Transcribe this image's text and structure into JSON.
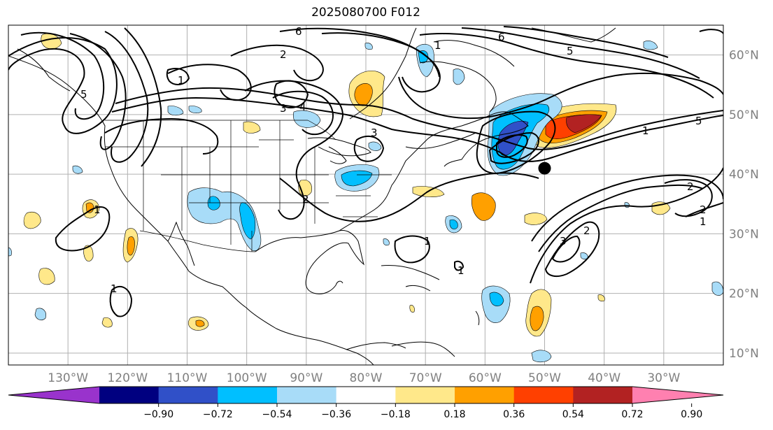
{
  "title": "2025080700 F012",
  "map": {
    "lon_range": [
      -140,
      -20
    ],
    "lat_range": [
      8,
      65
    ],
    "lon_ticks": [
      {
        "value": -130,
        "label": "130°W"
      },
      {
        "value": -120,
        "label": "120°W"
      },
      {
        "value": -110,
        "label": "110°W"
      },
      {
        "value": -100,
        "label": "100°W"
      },
      {
        "value": -90,
        "label": "90°W"
      },
      {
        "value": -80,
        "label": "80°W"
      },
      {
        "value": -70,
        "label": "70°W"
      },
      {
        "value": -60,
        "label": "60°W"
      },
      {
        "value": -50,
        "label": "50°W"
      },
      {
        "value": -40,
        "label": "40°W"
      },
      {
        "value": -30,
        "label": "30°W"
      }
    ],
    "lat_ticks": [
      {
        "value": 60,
        "label": "60°N"
      },
      {
        "value": 50,
        "label": "50°N"
      },
      {
        "value": 40,
        "label": "40°N"
      },
      {
        "value": 30,
        "label": "30°N"
      },
      {
        "value": 20,
        "label": "20°N"
      },
      {
        "value": 10,
        "label": "10°N"
      }
    ],
    "marker": {
      "lon": -50,
      "lat": 41,
      "color": "#000000"
    },
    "contour_labels": [
      "1",
      "2",
      "3",
      "4",
      "5",
      "6",
      "1",
      "2",
      "3",
      "5",
      "1",
      "2",
      "3",
      "1",
      "1",
      "1",
      "1",
      "6",
      "2",
      "2",
      "1",
      "5"
    ]
  },
  "colorbar": {
    "colors": [
      "#9933cc",
      "#000080",
      "#3050c8",
      "#00bfff",
      "#a8dcf8",
      "#ffffff",
      "#ffe88a",
      "#ffa000",
      "#ff4000",
      "#b22222",
      "#ff80b0"
    ],
    "labels": [
      "−0.90",
      "−0.72",
      "−0.54",
      "−0.36",
      "−0.18",
      "0.18",
      "0.36",
      "0.54",
      "0.72",
      "0.90"
    ]
  }
}
